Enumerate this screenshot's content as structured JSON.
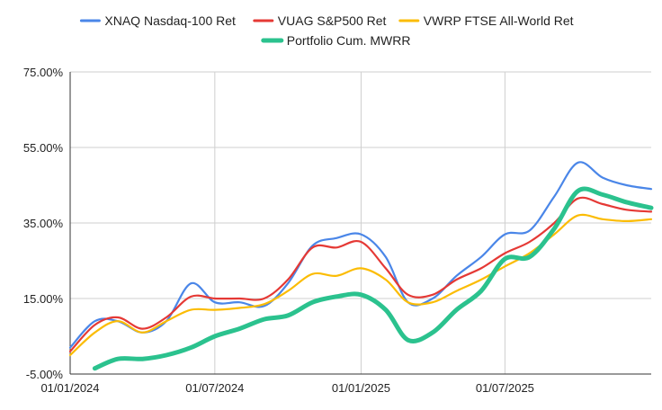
{
  "chart_data": {
    "type": "line",
    "title": "",
    "xlabel": "",
    "ylabel": "",
    "x_dates": [
      "2024-01-01",
      "2024-02-01",
      "2024-03-01",
      "2024-04-01",
      "2024-05-01",
      "2024-06-01",
      "2024-07-01",
      "2024-08-01",
      "2024-09-01",
      "2024-10-01",
      "2024-11-01",
      "2024-12-01",
      "2025-01-01",
      "2025-02-01",
      "2025-03-01",
      "2025-04-01",
      "2025-05-01",
      "2025-06-01",
      "2025-07-01",
      "2025-08-01",
      "2025-09-01",
      "2025-10-01",
      "2025-11-01",
      "2025-12-01",
      "2026-01-01"
    ],
    "x_ticks": [
      {
        "date": "2024-01-01",
        "label": "01/01/2024"
      },
      {
        "date": "2024-07-01",
        "label": "01/07/2024"
      },
      {
        "date": "2025-01-01",
        "label": "01/01/2025"
      },
      {
        "date": "2025-07-01",
        "label": "01/07/2025"
      }
    ],
    "y_ticks": [
      {
        "value": -5,
        "label": "-5.00%"
      },
      {
        "value": 15,
        "label": "15.00%"
      },
      {
        "value": 35,
        "label": "35.00%"
      },
      {
        "value": 55,
        "label": "55.00%"
      },
      {
        "value": 75,
        "label": "75.00%"
      }
    ],
    "ylim": [
      -5,
      75
    ],
    "xlim": [
      "2024-01-01",
      "2026-01-01"
    ],
    "grid": "vertical and horizontal",
    "legend_position": "top",
    "series": [
      {
        "name": "XNAQ Nasdaq-100 Ret",
        "color": "#4a86e8",
        "thick": false,
        "values": [
          2,
          9,
          9,
          6,
          9,
          19,
          14,
          14,
          13,
          19,
          29,
          31,
          32,
          26,
          14,
          15,
          21,
          26,
          32,
          33,
          42,
          51,
          47,
          45,
          44
        ]
      },
      {
        "name": "VUAG S&P500 Ret",
        "color": "#e53935",
        "thick": false,
        "values": [
          1,
          8,
          10,
          7,
          10,
          15.5,
          15,
          15,
          15,
          20,
          28.5,
          28.5,
          30,
          23,
          16,
          16,
          20,
          23,
          27,
          30,
          35,
          41.5,
          40,
          38.5,
          38
        ]
      },
      {
        "name": "VWRP FTSE All-World Ret",
        "color": "#fbbc04",
        "thick": false,
        "values": [
          0,
          6,
          9,
          6,
          9,
          12,
          12,
          12.5,
          13.5,
          17,
          21.5,
          21,
          23,
          20,
          14,
          14,
          17,
          20,
          23.5,
          27,
          32,
          37,
          36,
          35.5,
          36
        ]
      },
      {
        "name": "Portfolio Cum. MWRR",
        "color": "#2bc28e",
        "thick": true,
        "values": [
          null,
          -3.5,
          -1,
          -1,
          0,
          2,
          5,
          7,
          9.5,
          10.5,
          14,
          15.5,
          16,
          12,
          4,
          6,
          12,
          17,
          25.5,
          26,
          33.5,
          43.5,
          42.5,
          40.5,
          39
        ]
      }
    ]
  }
}
